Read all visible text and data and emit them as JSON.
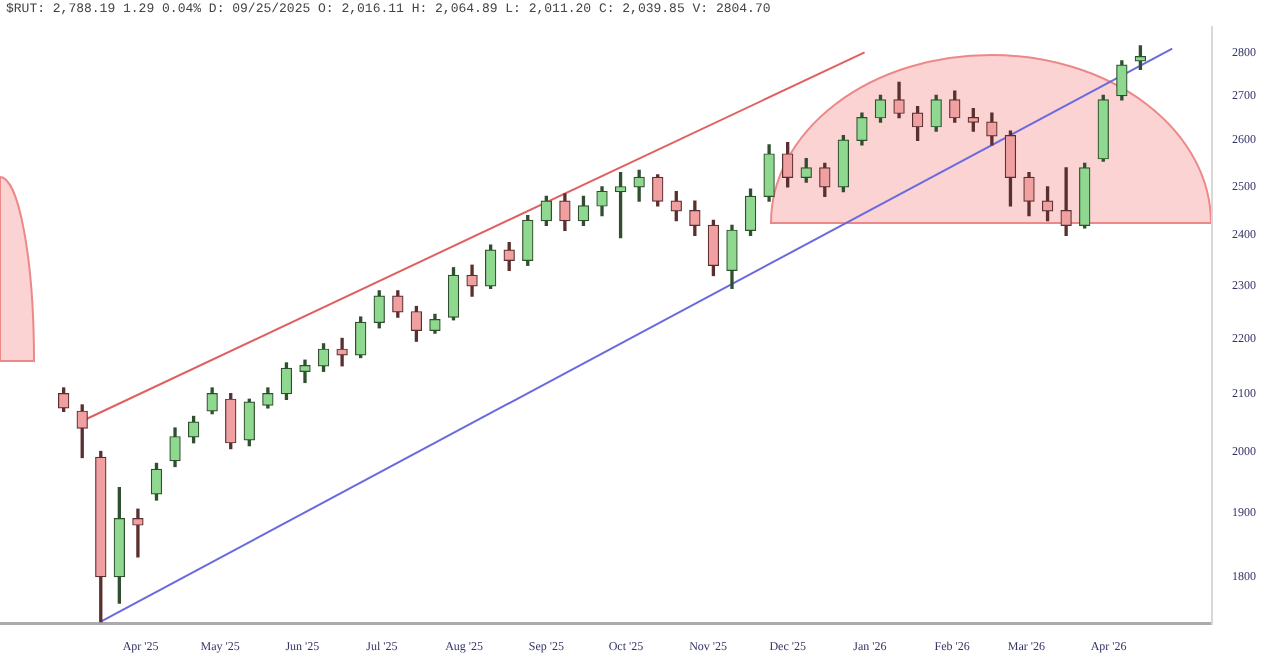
{
  "chart_data": {
    "type": "candlestick",
    "title": "$RUT: 2,788.19 1.29 0.04% D: 09/25/2025 O: 2,016.11 H: 2,064.89 L: 2,011.20 C: 2,039.85 V: 2804.70",
    "x": [
      "2025-03-03",
      "2025-03-10",
      "2025-03-17",
      "2025-03-24",
      "2025-03-31",
      "2025-04-07",
      "2025-04-14",
      "2025-04-21",
      "2025-04-28",
      "2025-05-05",
      "2025-05-12",
      "2025-05-19",
      "2025-05-26",
      "2025-06-02",
      "2025-06-09",
      "2025-06-16",
      "2025-06-23",
      "2025-06-30",
      "2025-07-07",
      "2025-07-14",
      "2025-07-21",
      "2025-07-28",
      "2025-08-04",
      "2025-08-11",
      "2025-08-18",
      "2025-08-25",
      "2025-09-01",
      "2025-09-08",
      "2025-09-15",
      "2025-09-22",
      "2025-09-29",
      "2025-10-06",
      "2025-10-13",
      "2025-10-20",
      "2025-10-27",
      "2025-11-03",
      "2025-11-10",
      "2025-11-17",
      "2025-11-24",
      "2025-12-01",
      "2025-12-08",
      "2025-12-15",
      "2025-12-22",
      "2025-12-29",
      "2026-01-05",
      "2026-01-12",
      "2026-01-19",
      "2026-01-26",
      "2026-02-02",
      "2026-02-09",
      "2026-02-16",
      "2026-02-23",
      "2026-03-02",
      "2026-03-09",
      "2026-03-16",
      "2026-03-23",
      "2026-03-30",
      "2026-04-06",
      "2026-04-13"
    ],
    "ohlc": [
      [
        2100,
        2110,
        2069,
        2075
      ],
      [
        2069,
        2080,
        1990,
        2040
      ],
      [
        1990,
        2000,
        1733,
        1800
      ],
      [
        1800,
        1940,
        1760,
        1890
      ],
      [
        1890,
        1905,
        1830,
        1880
      ],
      [
        1930,
        1980,
        1920,
        1970
      ],
      [
        1985,
        2040,
        1975,
        2025
      ],
      [
        2025,
        2060,
        2015,
        2050
      ],
      [
        2070,
        2110,
        2065,
        2100
      ],
      [
        2090,
        2100,
        2005,
        2015
      ],
      [
        2020,
        2090,
        2010,
        2085
      ],
      [
        2080,
        2110,
        2075,
        2100
      ],
      [
        2100,
        2155,
        2090,
        2145
      ],
      [
        2140,
        2160,
        2120,
        2150
      ],
      [
        2150,
        2190,
        2140,
        2180
      ],
      [
        2180,
        2200,
        2150,
        2170
      ],
      [
        2170,
        2240,
        2165,
        2230
      ],
      [
        2230,
        2290,
        2220,
        2280
      ],
      [
        2280,
        2290,
        2240,
        2250
      ],
      [
        2250,
        2260,
        2195,
        2215
      ],
      [
        2215,
        2245,
        2210,
        2235
      ],
      [
        2240,
        2335,
        2235,
        2320
      ],
      [
        2320,
        2340,
        2280,
        2300
      ],
      [
        2300,
        2380,
        2295,
        2370
      ],
      [
        2370,
        2385,
        2330,
        2350
      ],
      [
        2350,
        2440,
        2340,
        2430
      ],
      [
        2430,
        2480,
        2420,
        2470
      ],
      [
        2470,
        2485,
        2410,
        2430
      ],
      [
        2430,
        2480,
        2420,
        2460
      ],
      [
        2460,
        2500,
        2440,
        2490
      ],
      [
        2490,
        2530,
        2395,
        2500
      ],
      [
        2500,
        2535,
        2470,
        2520
      ],
      [
        2520,
        2525,
        2460,
        2470
      ],
      [
        2470,
        2490,
        2430,
        2450
      ],
      [
        2450,
        2470,
        2400,
        2420
      ],
      [
        2420,
        2430,
        2320,
        2340
      ],
      [
        2330,
        2420,
        2295,
        2410
      ],
      [
        2410,
        2495,
        2400,
        2480
      ],
      [
        2480,
        2590,
        2470,
        2570
      ],
      [
        2570,
        2595,
        2500,
        2520
      ],
      [
        2520,
        2560,
        2510,
        2540
      ],
      [
        2540,
        2550,
        2480,
        2500
      ],
      [
        2500,
        2610,
        2490,
        2600
      ],
      [
        2600,
        2660,
        2590,
        2650
      ],
      [
        2650,
        2700,
        2640,
        2690
      ],
      [
        2690,
        2730,
        2650,
        2660
      ],
      [
        2660,
        2675,
        2600,
        2630
      ],
      [
        2630,
        2700,
        2620,
        2690
      ],
      [
        2690,
        2710,
        2640,
        2650
      ],
      [
        2650,
        2670,
        2620,
        2640
      ],
      [
        2640,
        2660,
        2590,
        2610
      ],
      [
        2610,
        2620,
        2460,
        2520
      ],
      [
        2520,
        2530,
        2440,
        2470
      ],
      [
        2470,
        2500,
        2430,
        2450
      ],
      [
        2450,
        2540,
        2400,
        2420
      ],
      [
        2420,
        2550,
        2415,
        2540
      ],
      [
        2560,
        2700,
        2555,
        2690
      ],
      [
        2700,
        2780,
        2690,
        2770
      ],
      [
        2780,
        2815,
        2760,
        2790
      ]
    ],
    "series": [
      {
        "type": "line",
        "x": [
          "2025-03-09",
          "2025-12-30"
        ],
        "values": [
          2050,
          2800
        ],
        "color": "#e06060"
      },
      {
        "type": "line",
        "x": [
          "2025-03-17",
          "2026-04-25"
        ],
        "values": [
          1733,
          2809
        ],
        "color": "#6a6ae0"
      }
    ],
    "log": true,
    "xlim": [
      "2025-02-07",
      "2026-05-10"
    ],
    "xticks": [
      {
        "value": "2025-04-01",
        "label": "Apr '25"
      },
      {
        "value": "2025-05-01",
        "label": "May '25"
      },
      {
        "value": "2025-06-01",
        "label": "Jun '25"
      },
      {
        "value": "2025-07-01",
        "label": "Jul '25"
      },
      {
        "value": "2025-08-01",
        "label": "Aug '25"
      },
      {
        "value": "2025-09-01",
        "label": "Sep '25"
      },
      {
        "value": "2025-10-01",
        "label": "Oct '25"
      },
      {
        "value": "2025-11-01",
        "label": "Nov '25"
      },
      {
        "value": "2025-12-01",
        "label": "Dec '25"
      },
      {
        "value": "2026-01-01",
        "label": "Jan '26"
      },
      {
        "value": "2026-02-01",
        "label": "Feb '26"
      },
      {
        "value": "2026-03-01",
        "label": "Mar '26"
      },
      {
        "value": "2026-04-01",
        "label": "Apr '26"
      }
    ],
    "ylim": [
      1730,
      2860
    ],
    "yticks": [
      1800,
      1900,
      2000,
      2100,
      2200,
      2300,
      2400,
      2500,
      2600,
      2700,
      2800
    ]
  }
}
